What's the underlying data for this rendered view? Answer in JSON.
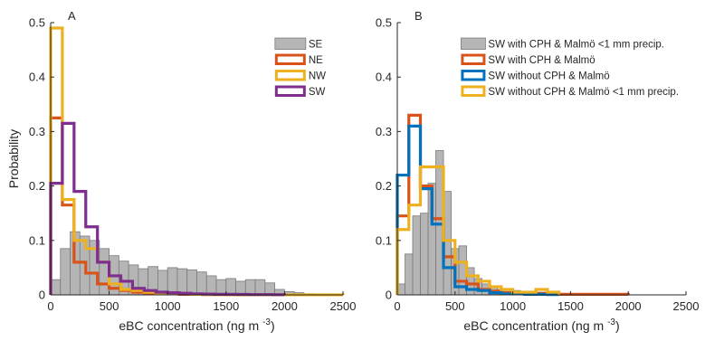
{
  "chart_data": [
    {
      "panel": "A",
      "type": "histogram",
      "xlabel": "eBC concentration (ng m⁻³)",
      "xlabel_main": "eBC concentration (ng m",
      "xlabel_sup": "-3",
      "xlabel_close": ")",
      "ylabel": "Probability",
      "xlim": [
        0,
        2500
      ],
      "ylim": [
        0,
        0.5
      ],
      "xticks": [
        0,
        500,
        1000,
        1500,
        2000,
        2500
      ],
      "yticks": [
        0,
        0.1,
        0.2,
        0.3,
        0.4,
        0.5
      ],
      "legend_position": "top-right",
      "grid": false,
      "series": [
        {
          "name": "SE",
          "style": "filled bars",
          "color": "#b5b5b5",
          "edge_color": "#7a7a7a",
          "bin_width": 83.33,
          "values": [
            0.028,
            0.085,
            0.116,
            0.108,
            0.1,
            0.085,
            0.072,
            0.062,
            0.055,
            0.048,
            0.052,
            0.045,
            0.05,
            0.048,
            0.046,
            0.042,
            0.035,
            0.028,
            0.03,
            0.025,
            0.028,
            0.028,
            0.022,
            0.01,
            0.006,
            0.004,
            0.002,
            0.001,
            0.0005,
            0.0003
          ]
        },
        {
          "name": "NE",
          "style": "step",
          "color": "#d95319",
          "bin_width": 100,
          "values": [
            0.325,
            0.165,
            0.06,
            0.04,
            0.02,
            0.012,
            0.008,
            0.005,
            0.003,
            0.002,
            0.002,
            0.001,
            0.001,
            0.0005,
            0.0005,
            0.0003,
            0.0002,
            0.0001,
            0.0001,
            0.0001
          ]
        },
        {
          "name": "NW",
          "style": "step",
          "color": "#edb120",
          "bin_width": 100,
          "values": [
            0.49,
            0.175,
            0.1,
            0.085,
            0.06,
            0.02,
            0.01,
            0.008,
            0.005,
            0.003,
            0.003,
            0.002,
            0.001,
            0.001,
            0.0005,
            0.0005,
            0.0003,
            0.0002,
            0.0001,
            0.0001,
            0.0001,
            0.0001,
            0.0001,
            0.0001,
            0.0001
          ]
        },
        {
          "name": "SW",
          "style": "step",
          "color": "#7e2f8e",
          "bin_width": 100,
          "values": [
            0.205,
            0.315,
            0.19,
            0.125,
            0.06,
            0.035,
            0.025,
            0.012,
            0.008,
            0.005,
            0.004,
            0.003,
            0.002,
            0.0015,
            0.001,
            0.001,
            0.0008,
            0.0005,
            0.0005,
            0.0003
          ]
        }
      ]
    },
    {
      "panel": "B",
      "type": "histogram",
      "xlabel": "eBC concentration (ng m⁻³)",
      "xlabel_main": "eBC concentration (ng m",
      "xlabel_sup": "-3",
      "xlabel_close": ")",
      "ylabel": "",
      "xlim": [
        0,
        2500
      ],
      "ylim": [
        0,
        0.5
      ],
      "xticks": [
        0,
        500,
        1000,
        1500,
        2000,
        2500
      ],
      "yticks": [
        0,
        0.1,
        0.2,
        0.3,
        0.4,
        0.5
      ],
      "legend_position": "top-right",
      "grid": false,
      "series": [
        {
          "name": "SW with CPH & Malmö <1 mm precip.",
          "style": "filled bars",
          "color": "#b5b5b5",
          "edge_color": "#7a7a7a",
          "bin_width": 66.67,
          "values": [
            0.02,
            0.075,
            0.145,
            0.15,
            0.205,
            0.265,
            0.19,
            0.085,
            0.09,
            0.05,
            0.03,
            0.02,
            0.015,
            0.01,
            0.01,
            0.008,
            0.005,
            0.004,
            0.003,
            0.003,
            0.002,
            0.001
          ]
        },
        {
          "name": "SW with CPH & Malmö",
          "style": "step",
          "color": "#d95319",
          "bin_width": 100,
          "values": [
            0.145,
            0.33,
            0.2,
            0.14,
            0.07,
            0.025,
            0.02,
            0.01,
            0.007,
            0.004,
            0.003,
            0.003,
            0.003,
            0.002,
            0.001,
            0.001,
            0.001,
            0.001,
            0.001,
            0.001
          ]
        },
        {
          "name": "SW without CPH & Malmö",
          "style": "step",
          "color": "#0072bd",
          "bin_width": 100,
          "values": [
            0.22,
            0.31,
            0.195,
            0.13,
            0.05,
            0.015,
            0.01,
            0.008,
            0.004,
            0.002,
            0.002,
            0.001,
            0.001,
            0.0005
          ]
        },
        {
          "name": "SW without CPH & Malmö <1 mm precip.",
          "style": "step",
          "color": "#edb120",
          "bin_width": 100,
          "values": [
            0.12,
            0.165,
            0.235,
            0.235,
            0.1,
            0.06,
            0.035,
            0.025,
            0.015,
            0.01,
            0.005,
            0.005,
            0.01,
            0.005
          ]
        }
      ]
    }
  ]
}
